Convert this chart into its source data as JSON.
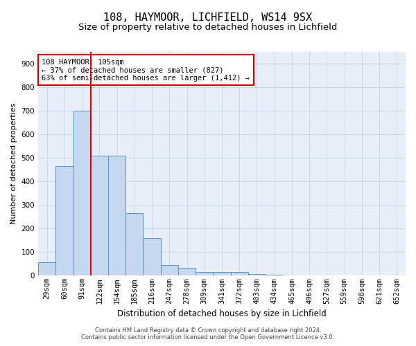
{
  "title1": "108, HAYMOOR, LICHFIELD, WS14 9SX",
  "title2": "Size of property relative to detached houses in Lichfield",
  "xlabel": "Distribution of detached houses by size in Lichfield",
  "ylabel": "Number of detached properties",
  "categories": [
    "29sqm",
    "60sqm",
    "91sqm",
    "122sqm",
    "154sqm",
    "185sqm",
    "216sqm",
    "247sqm",
    "278sqm",
    "309sqm",
    "341sqm",
    "372sqm",
    "403sqm",
    "434sqm",
    "465sqm",
    "496sqm",
    "527sqm",
    "559sqm",
    "590sqm",
    "621sqm",
    "652sqm"
  ],
  "values": [
    57,
    465,
    700,
    510,
    510,
    265,
    160,
    45,
    32,
    17,
    15,
    15,
    8,
    3,
    0,
    0,
    0,
    0,
    0,
    0,
    0
  ],
  "bar_color": "#c5d8f0",
  "bar_edge_color": "#5a8fc0",
  "vline_color": "#cc0000",
  "vline_pos": 2.5,
  "annotation_text": "108 HAYMOOR: 105sqm\n← 37% of detached houses are smaller (827)\n63% of semi-detached houses are larger (1,412) →",
  "annotation_box_color": "#cc0000",
  "ylim": [
    0,
    950
  ],
  "yticks": [
    0,
    100,
    200,
    300,
    400,
    500,
    600,
    700,
    800,
    900
  ],
  "grid_color": "#c8d8e8",
  "bg_color": "#e8eef8",
  "footer": "Contains HM Land Registry data © Crown copyright and database right 2024.\nContains public sector information licensed under the Open Government Licence v3.0.",
  "title_fontsize": 11,
  "subtitle_fontsize": 9.5,
  "ylabel_fontsize": 8,
  "xlabel_fontsize": 8.5,
  "tick_fontsize": 7.5,
  "annotation_fontsize": 7.5,
  "footer_fontsize": 6
}
